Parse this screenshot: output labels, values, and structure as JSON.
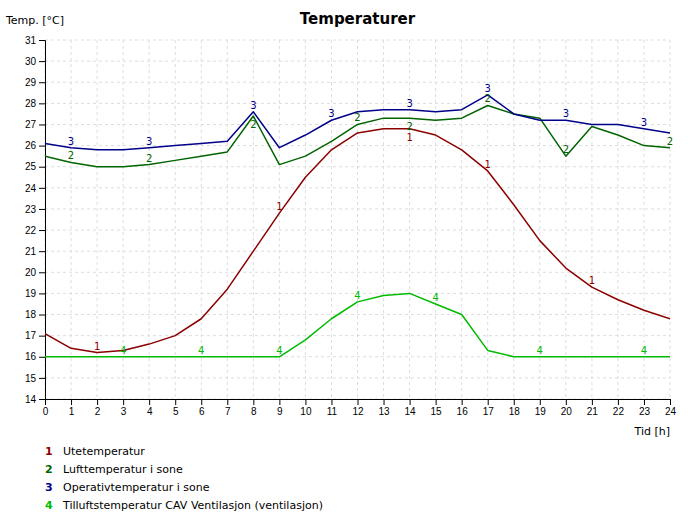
{
  "chart_data": {
    "type": "line",
    "title": "Temperaturer",
    "x_label": "Tid [h]",
    "y_label": "Temp. [°C]",
    "x": [
      0,
      1,
      2,
      3,
      4,
      5,
      6,
      7,
      8,
      9,
      10,
      11,
      12,
      13,
      14,
      15,
      16,
      17,
      18,
      19,
      20,
      21,
      22,
      23,
      24
    ],
    "xlim": [
      0,
      24
    ],
    "ylim": [
      14,
      31
    ],
    "xticks": [
      0,
      1,
      2,
      3,
      4,
      5,
      6,
      7,
      8,
      9,
      10,
      11,
      12,
      13,
      14,
      15,
      16,
      17,
      18,
      19,
      20,
      21,
      22,
      23,
      24
    ],
    "yticks": [
      14,
      15,
      16,
      17,
      18,
      19,
      20,
      21,
      22,
      23,
      24,
      25,
      26,
      27,
      28,
      29,
      30,
      31
    ],
    "grid": true,
    "legend": "bottom",
    "series": [
      {
        "name": "Utetemperatur",
        "color": "#8b0000",
        "label": "1",
        "label_x": [
          2,
          9,
          14,
          17,
          21
        ],
        "values": [
          17.1,
          16.4,
          16.2,
          16.3,
          16.6,
          17.0,
          17.8,
          19.2,
          21.0,
          22.8,
          24.5,
          25.8,
          26.6,
          26.8,
          26.8,
          26.5,
          25.8,
          24.8,
          23.2,
          21.5,
          20.2,
          19.3,
          18.7,
          18.2,
          17.8
        ]
      },
      {
        "name": "Lufttemperatur i sone",
        "color": "#006400",
        "label": "2",
        "label_x": [
          1,
          4,
          8,
          12,
          14,
          17,
          20,
          24
        ],
        "values": [
          25.5,
          25.2,
          25.0,
          25.0,
          25.1,
          25.3,
          25.5,
          25.7,
          27.4,
          25.1,
          25.5,
          26.2,
          27.0,
          27.3,
          27.3,
          27.2,
          27.3,
          27.9,
          27.5,
          27.3,
          25.5,
          26.9,
          26.5,
          26.0,
          25.9
        ]
      },
      {
        "name": "Operativtemperatur i sone",
        "color": "#00008b",
        "label": "3",
        "label_x": [
          1,
          4,
          8,
          11,
          14,
          17,
          20,
          23
        ],
        "values": [
          26.1,
          25.9,
          25.8,
          25.8,
          25.9,
          26.0,
          26.1,
          26.2,
          27.6,
          25.9,
          26.5,
          27.2,
          27.6,
          27.7,
          27.7,
          27.6,
          27.7,
          28.4,
          27.5,
          27.2,
          27.2,
          27.0,
          27.0,
          26.8,
          26.6
        ]
      },
      {
        "name": "Tilluftstemperatur CAV Ventilasjon (ventilasjon)",
        "color": "#00bb00",
        "label": "4",
        "label_x": [
          3,
          6,
          9,
          12,
          15,
          19,
          23
        ],
        "values": [
          16.0,
          16.0,
          16.0,
          16.0,
          16.0,
          16.0,
          16.0,
          16.0,
          16.0,
          16.0,
          16.8,
          17.8,
          18.6,
          18.9,
          19.0,
          18.5,
          18.0,
          16.3,
          16.0,
          16.0,
          16.0,
          16.0,
          16.0,
          16.0,
          16.0
        ]
      }
    ]
  }
}
